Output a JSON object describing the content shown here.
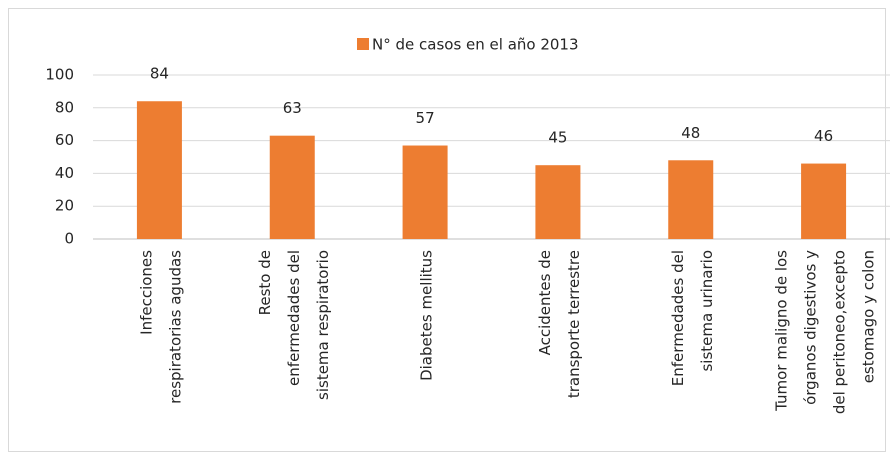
{
  "chart_data": {
    "type": "bar",
    "legend": "N° de casos en el año 2013",
    "categories": [
      [
        "Infecciones",
        "respiratorias agudas"
      ],
      [
        "Resto de",
        "enfermedades del",
        "sistema respiratorio"
      ],
      [
        "Diabetes mellitus"
      ],
      [
        "Accidentes de",
        "transporte terrestre"
      ],
      [
        "Enfermedades del",
        "sistema urinario"
      ],
      [
        "Tumor maligno de los",
        "órganos digestivos y",
        "del peritoneo,excepto",
        "estomago y colon"
      ]
    ],
    "values": [
      84,
      63,
      57,
      45,
      48,
      46
    ],
    "color": "#ed7d31",
    "ylim": [
      0,
      100
    ],
    "yticks": [
      0,
      20,
      40,
      60,
      80,
      100
    ],
    "grid": true
  }
}
